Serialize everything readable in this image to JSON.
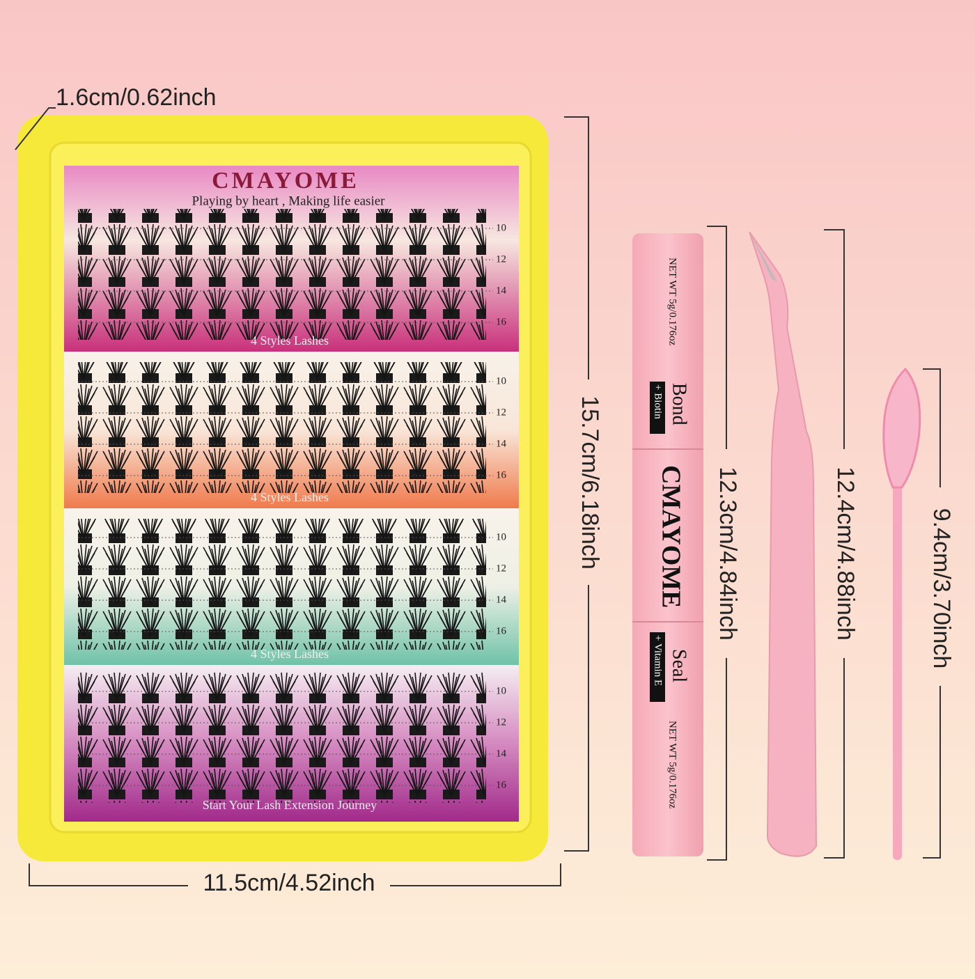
{
  "dimensions": {
    "depth": "1.6cm/0.62inch",
    "height": "15.7cm/6.18inch",
    "width": "11.5cm/4.52inch",
    "glue": "12.3cm/4.84inch",
    "tweezers": "12.4cm/4.88inch",
    "brush": "9.4cm/3.70inch"
  },
  "tray": {
    "brand": "CMAYOME",
    "slogan": "Playing by heart , Making life easier",
    "rows": [
      {
        "lengths": [
          10,
          12,
          14,
          16
        ],
        "caption": "4 Styles Lashes"
      },
      {
        "lengths": [
          10,
          12,
          14,
          16
        ],
        "caption": "4 Styles Lashes"
      },
      {
        "lengths": [
          10,
          12,
          14,
          16
        ],
        "caption": "4 Styles Lashes"
      },
      {
        "lengths": [
          10,
          12,
          14,
          16
        ],
        "caption": "Start Your Lash Extension Journey"
      }
    ]
  },
  "glue": {
    "net_weight_top": "NET WT 5g/0.176oz",
    "bond": "Bond",
    "bond_note": "+ Biotin",
    "brand": "CMAYOME",
    "seal": "Seal",
    "seal_note": "+ Vitamin E",
    "net_weight_bottom": "NET WT 5g/0.176oz"
  }
}
